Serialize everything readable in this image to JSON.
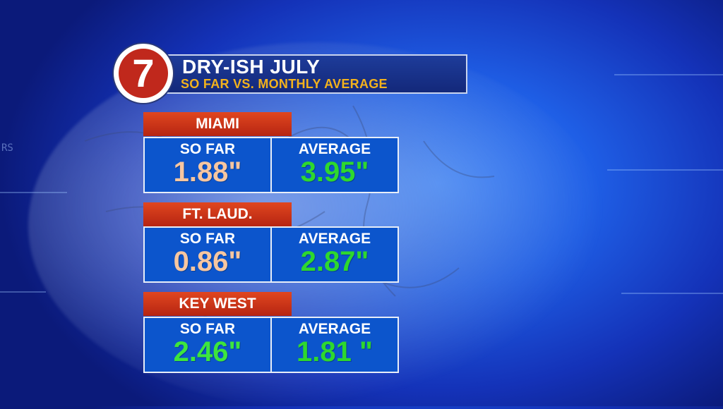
{
  "header": {
    "logo_label": "7",
    "title": "DRY-ISH JULY",
    "subtitle": "SO FAR VS. MONTHLY AVERAGE"
  },
  "colors": {
    "sofar_dry": "#f7c6a0",
    "average_green": "#2ed82e",
    "sofar_wet": "#3de53d",
    "tag_red": "#c8321a",
    "panel_blue": "#0c55cc"
  },
  "cities": [
    {
      "name": "MIAMI",
      "so_far_label": "SO FAR",
      "so_far_value": "1.88\"",
      "average_label": "AVERAGE",
      "average_value": "3.95\""
    },
    {
      "name": "FT. LAUD.",
      "so_far_label": "SO FAR",
      "so_far_value": "0.86\"",
      "average_label": "AVERAGE",
      "average_value": "2.87\""
    },
    {
      "name": "KEY WEST",
      "so_far_label": "SO FAR",
      "so_far_value": "2.46\"",
      "average_label": "AVERAGE",
      "average_value": "1.81 \""
    }
  ],
  "background": {
    "side_text": "RS"
  }
}
